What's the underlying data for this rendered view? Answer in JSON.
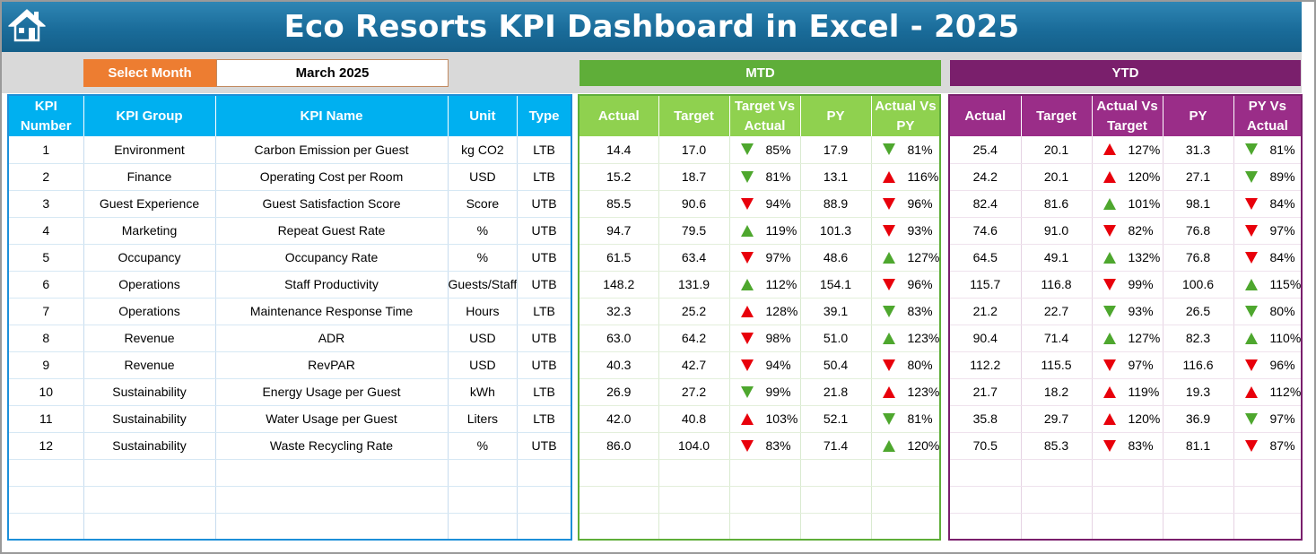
{
  "title": "Eco Resorts KPI Dashboard in Excel - 2025",
  "icons": {
    "home": "home-icon"
  },
  "colors": {
    "title_bar": "#1a6c9a",
    "month_label": "#ed7d31",
    "kpi_header": "#00b0f0",
    "mtd": "#5fae39",
    "mtd_header": "#8fd14f",
    "ytd": "#7a1f6c",
    "ytd_header": "#9a2d88",
    "good": "#4ea72e",
    "bad": "#e8000b"
  },
  "selector": {
    "label": "Select Month",
    "value": "March 2025"
  },
  "sections": {
    "mtd": "MTD",
    "ytd": "YTD"
  },
  "kpi_headers": [
    "KPI Number",
    "KPI Group",
    "KPI Name",
    "Unit",
    "Type"
  ],
  "mtd_headers": [
    "Actual",
    "Target",
    "Target Vs Actual",
    "PY",
    "Actual Vs PY"
  ],
  "ytd_headers": [
    "Actual",
    "Target",
    "Actual Vs Target",
    "PY",
    "PY Vs Actual"
  ],
  "rows": [
    {
      "num": "1",
      "group": "Environment",
      "name": "Carbon Emission per Guest",
      "unit": "kg CO2",
      "type": "LTB",
      "mtd": {
        "actual": "14.4",
        "target": "17.0",
        "tva": "85%",
        "tva_dir": "down",
        "tva_color": "green",
        "py": "17.9",
        "avp": "81%",
        "avp_dir": "down",
        "avp_color": "green"
      },
      "ytd": {
        "actual": "25.4",
        "target": "20.1",
        "avt": "127%",
        "avt_dir": "up",
        "avt_color": "red",
        "py": "31.3",
        "pva": "81%",
        "pva_dir": "down",
        "pva_color": "green"
      }
    },
    {
      "num": "2",
      "group": "Finance",
      "name": "Operating Cost per Room",
      "unit": "USD",
      "type": "LTB",
      "mtd": {
        "actual": "15.2",
        "target": "18.7",
        "tva": "81%",
        "tva_dir": "down",
        "tva_color": "green",
        "py": "13.1",
        "avp": "116%",
        "avp_dir": "up",
        "avp_color": "red"
      },
      "ytd": {
        "actual": "24.2",
        "target": "20.1",
        "avt": "120%",
        "avt_dir": "up",
        "avt_color": "red",
        "py": "27.1",
        "pva": "89%",
        "pva_dir": "down",
        "pva_color": "green"
      }
    },
    {
      "num": "3",
      "group": "Guest Experience",
      "name": "Guest Satisfaction Score",
      "unit": "Score",
      "type": "UTB",
      "mtd": {
        "actual": "85.5",
        "target": "90.6",
        "tva": "94%",
        "tva_dir": "down",
        "tva_color": "red",
        "py": "88.9",
        "avp": "96%",
        "avp_dir": "down",
        "avp_color": "red"
      },
      "ytd": {
        "actual": "82.4",
        "target": "81.6",
        "avt": "101%",
        "avt_dir": "up",
        "avt_color": "green",
        "py": "98.1",
        "pva": "84%",
        "pva_dir": "down",
        "pva_color": "red"
      }
    },
    {
      "num": "4",
      "group": "Marketing",
      "name": "Repeat Guest Rate",
      "unit": "%",
      "type": "UTB",
      "mtd": {
        "actual": "94.7",
        "target": "79.5",
        "tva": "119%",
        "tva_dir": "up",
        "tva_color": "green",
        "py": "101.3",
        "avp": "93%",
        "avp_dir": "down",
        "avp_color": "red"
      },
      "ytd": {
        "actual": "74.6",
        "target": "91.0",
        "avt": "82%",
        "avt_dir": "down",
        "avt_color": "red",
        "py": "76.8",
        "pva": "97%",
        "pva_dir": "down",
        "pva_color": "red"
      }
    },
    {
      "num": "5",
      "group": "Occupancy",
      "name": "Occupancy Rate",
      "unit": "%",
      "type": "UTB",
      "mtd": {
        "actual": "61.5",
        "target": "63.4",
        "tva": "97%",
        "tva_dir": "down",
        "tva_color": "red",
        "py": "48.6",
        "avp": "127%",
        "avp_dir": "up",
        "avp_color": "green"
      },
      "ytd": {
        "actual": "64.5",
        "target": "49.1",
        "avt": "132%",
        "avt_dir": "up",
        "avt_color": "green",
        "py": "76.8",
        "pva": "84%",
        "pva_dir": "down",
        "pva_color": "red"
      }
    },
    {
      "num": "6",
      "group": "Operations",
      "name": "Staff Productivity",
      "unit": "Guests/Staff",
      "type": "UTB",
      "mtd": {
        "actual": "148.2",
        "target": "131.9",
        "tva": "112%",
        "tva_dir": "up",
        "tva_color": "green",
        "py": "154.1",
        "avp": "96%",
        "avp_dir": "down",
        "avp_color": "red"
      },
      "ytd": {
        "actual": "115.7",
        "target": "116.8",
        "avt": "99%",
        "avt_dir": "down",
        "avt_color": "red",
        "py": "100.6",
        "pva": "115%",
        "pva_dir": "up",
        "pva_color": "green"
      }
    },
    {
      "num": "7",
      "group": "Operations",
      "name": "Maintenance Response Time",
      "unit": "Hours",
      "type": "LTB",
      "mtd": {
        "actual": "32.3",
        "target": "25.2",
        "tva": "128%",
        "tva_dir": "up",
        "tva_color": "red",
        "py": "39.1",
        "avp": "83%",
        "avp_dir": "down",
        "avp_color": "green"
      },
      "ytd": {
        "actual": "21.2",
        "target": "22.7",
        "avt": "93%",
        "avt_dir": "down",
        "avt_color": "green",
        "py": "26.5",
        "pva": "80%",
        "pva_dir": "down",
        "pva_color": "green"
      }
    },
    {
      "num": "8",
      "group": "Revenue",
      "name": "ADR",
      "unit": "USD",
      "type": "UTB",
      "mtd": {
        "actual": "63.0",
        "target": "64.2",
        "tva": "98%",
        "tva_dir": "down",
        "tva_color": "red",
        "py": "51.0",
        "avp": "123%",
        "avp_dir": "up",
        "avp_color": "green"
      },
      "ytd": {
        "actual": "90.4",
        "target": "71.4",
        "avt": "127%",
        "avt_dir": "up",
        "avt_color": "green",
        "py": "82.3",
        "pva": "110%",
        "pva_dir": "up",
        "pva_color": "green"
      }
    },
    {
      "num": "9",
      "group": "Revenue",
      "name": "RevPAR",
      "unit": "USD",
      "type": "UTB",
      "mtd": {
        "actual": "40.3",
        "target": "42.7",
        "tva": "94%",
        "tva_dir": "down",
        "tva_color": "red",
        "py": "50.4",
        "avp": "80%",
        "avp_dir": "down",
        "avp_color": "red"
      },
      "ytd": {
        "actual": "112.2",
        "target": "115.5",
        "avt": "97%",
        "avt_dir": "down",
        "avt_color": "red",
        "py": "116.6",
        "pva": "96%",
        "pva_dir": "down",
        "pva_color": "red"
      }
    },
    {
      "num": "10",
      "group": "Sustainability",
      "name": "Energy Usage per Guest",
      "unit": "kWh",
      "type": "LTB",
      "mtd": {
        "actual": "26.9",
        "target": "27.2",
        "tva": "99%",
        "tva_dir": "down",
        "tva_color": "green",
        "py": "21.8",
        "avp": "123%",
        "avp_dir": "up",
        "avp_color": "red"
      },
      "ytd": {
        "actual": "21.7",
        "target": "18.2",
        "avt": "119%",
        "avt_dir": "up",
        "avt_color": "red",
        "py": "19.3",
        "pva": "112%",
        "pva_dir": "up",
        "pva_color": "red"
      }
    },
    {
      "num": "11",
      "group": "Sustainability",
      "name": "Water Usage per Guest",
      "unit": "Liters",
      "type": "LTB",
      "mtd": {
        "actual": "42.0",
        "target": "40.8",
        "tva": "103%",
        "tva_dir": "up",
        "tva_color": "red",
        "py": "52.1",
        "avp": "81%",
        "avp_dir": "down",
        "avp_color": "green"
      },
      "ytd": {
        "actual": "35.8",
        "target": "29.7",
        "avt": "120%",
        "avt_dir": "up",
        "avt_color": "red",
        "py": "36.9",
        "pva": "97%",
        "pva_dir": "down",
        "pva_color": "green"
      }
    },
    {
      "num": "12",
      "group": "Sustainability",
      "name": "Waste Recycling Rate",
      "unit": "%",
      "type": "UTB",
      "mtd": {
        "actual": "86.0",
        "target": "104.0",
        "tva": "83%",
        "tva_dir": "down",
        "tva_color": "red",
        "py": "71.4",
        "avp": "120%",
        "avp_dir": "up",
        "avp_color": "green"
      },
      "ytd": {
        "actual": "70.5",
        "target": "85.3",
        "avt": "83%",
        "avt_dir": "down",
        "avt_color": "red",
        "py": "81.1",
        "pva": "87%",
        "pva_dir": "down",
        "pva_color": "red"
      }
    }
  ],
  "empty_rows": 3
}
